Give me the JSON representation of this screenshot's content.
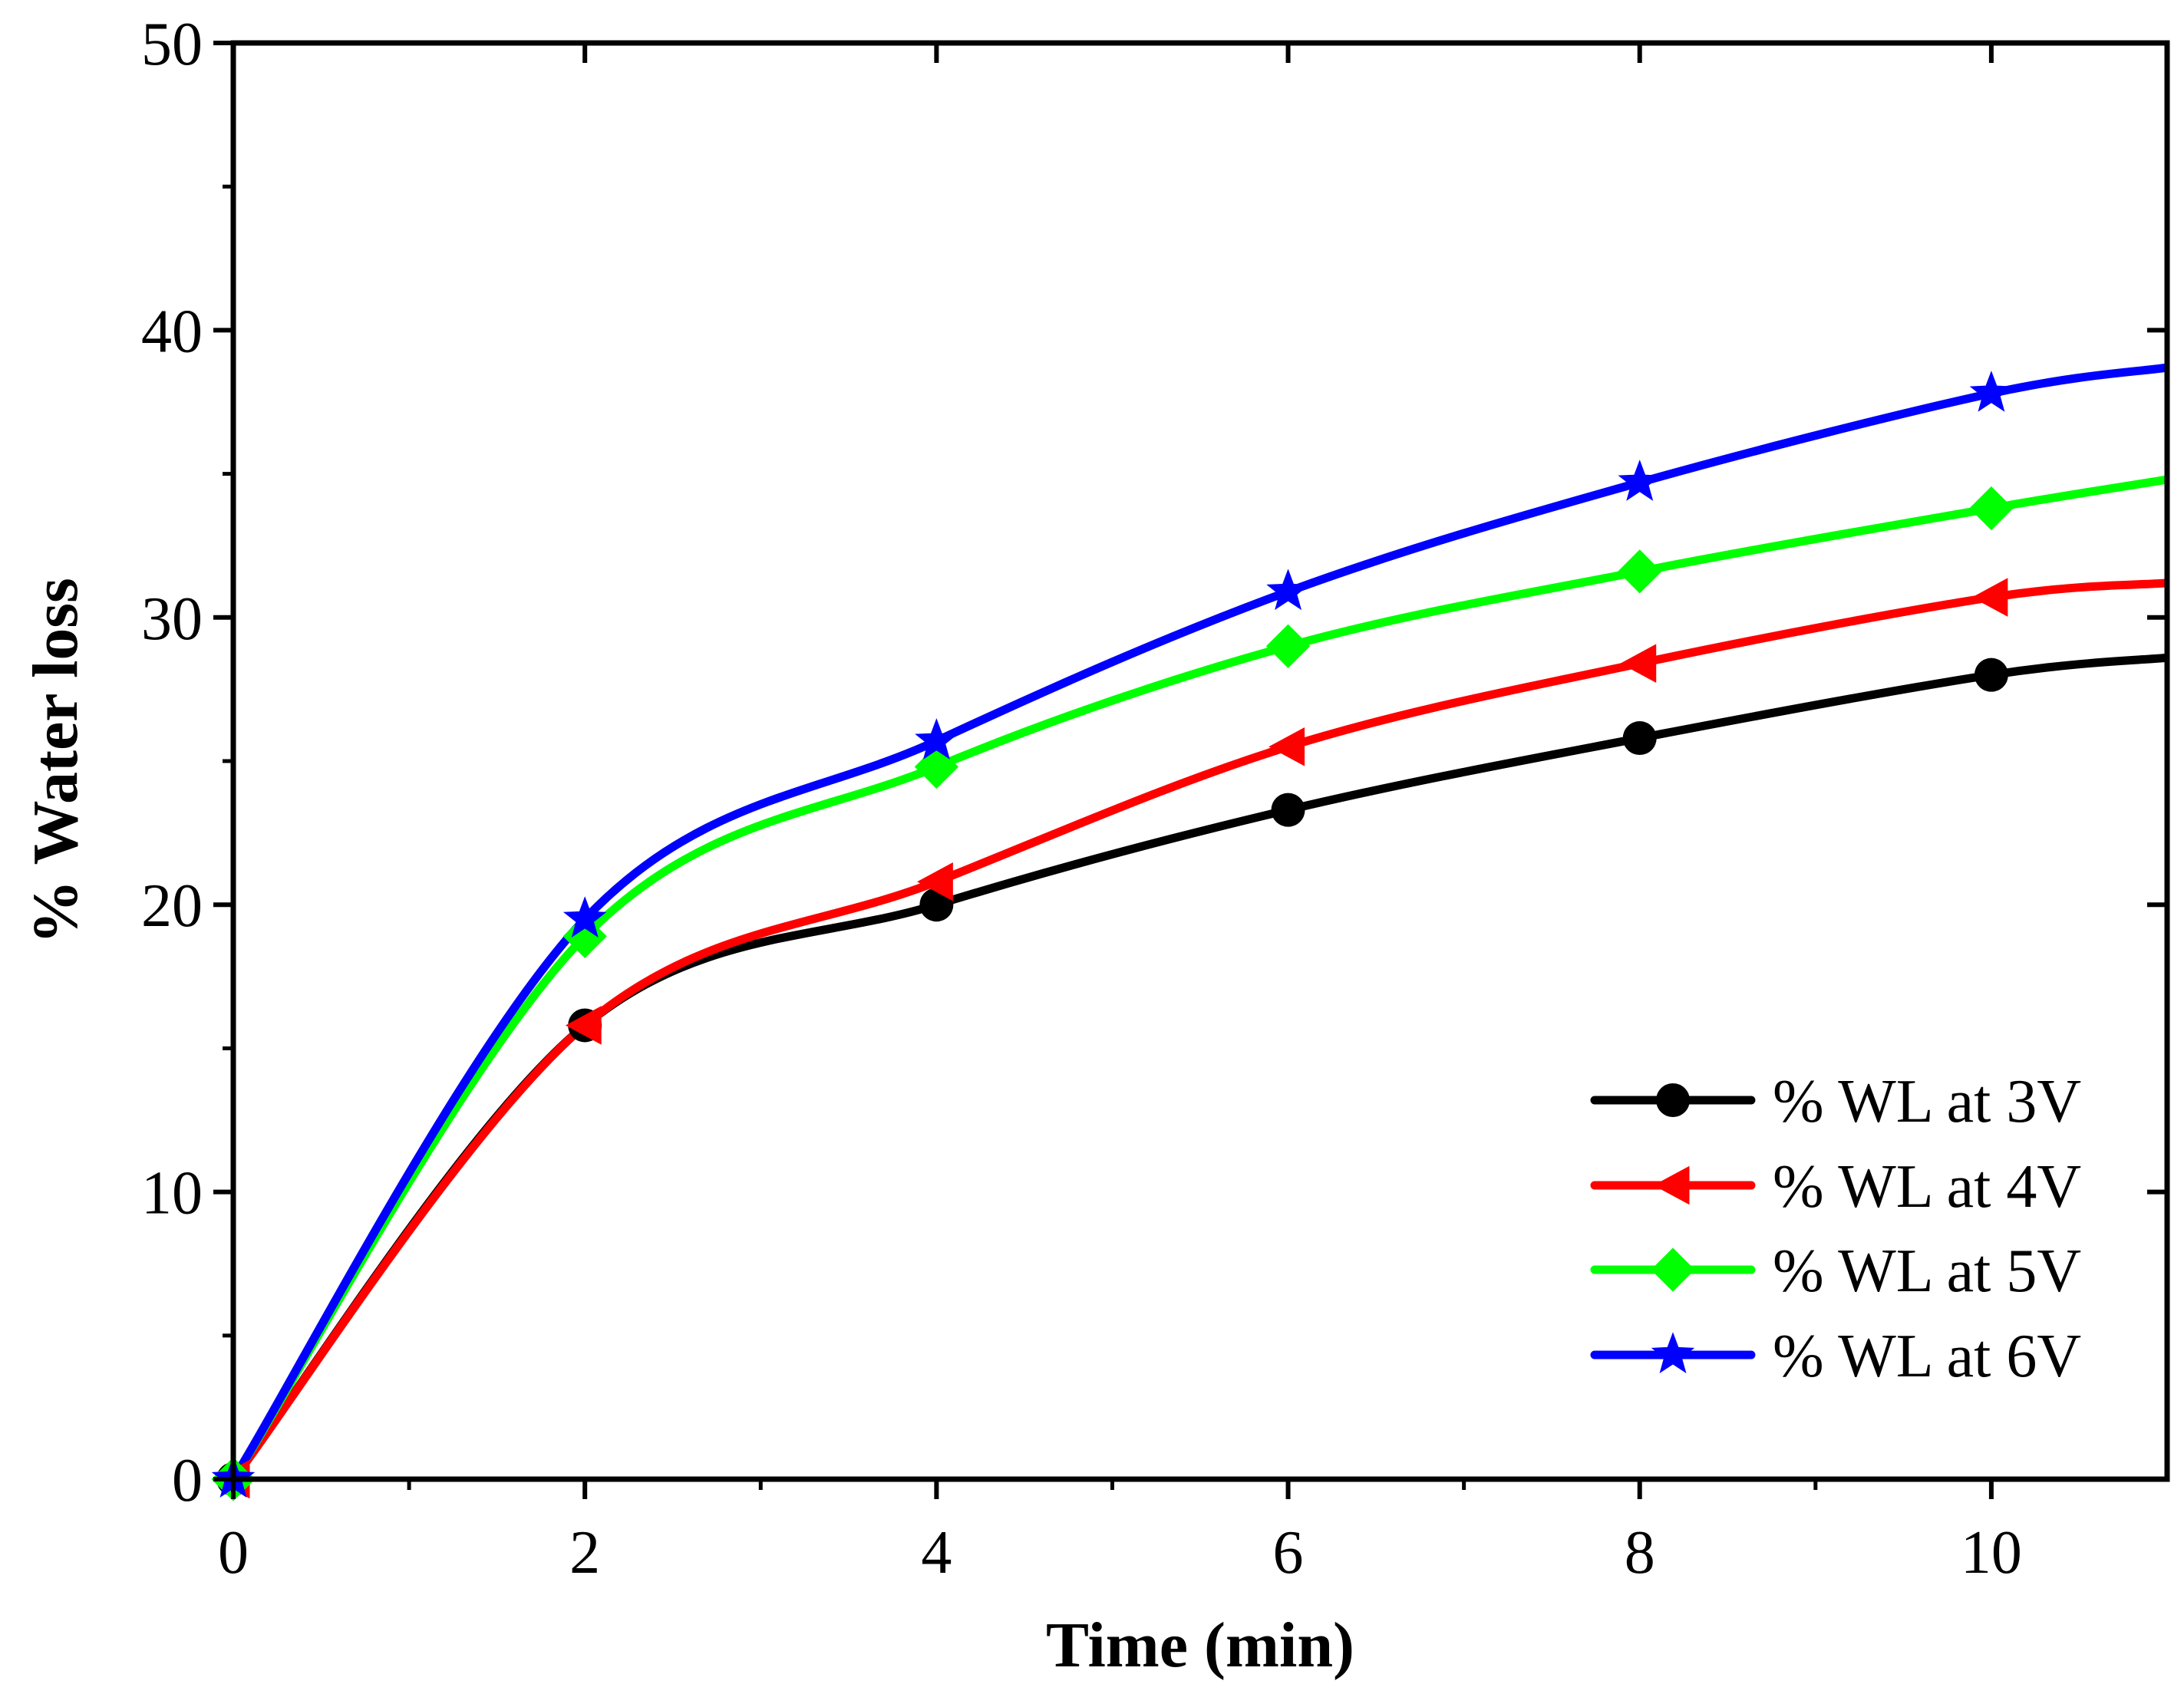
{
  "chart_data": {
    "type": "line",
    "title": "",
    "xlabel": "Time (min)",
    "ylabel": "% Water loss",
    "xlim": [
      0,
      11
    ],
    "ylim": [
      0,
      50
    ],
    "xticks": [
      0,
      2,
      4,
      6,
      8,
      10
    ],
    "yticks": [
      0,
      10,
      20,
      30,
      40,
      50
    ],
    "grid": false,
    "legend_position": "bottom-right",
    "series": [
      {
        "name": "% WL at 3V",
        "color": "#000000",
        "marker": "circle",
        "x": [
          0,
          2,
          4,
          6,
          8,
          10
        ],
        "y": [
          0,
          15.8,
          20.0,
          23.3,
          25.8,
          28.0
        ],
        "curve_end": 28.6
      },
      {
        "name": "% WL at 4V",
        "color": "#ff0000",
        "marker": "triangle-left",
        "x": [
          0,
          2,
          4,
          6,
          8,
          10
        ],
        "y": [
          0,
          15.8,
          20.8,
          25.5,
          28.4,
          30.7
        ],
        "curve_end": 31.2
      },
      {
        "name": "% WL at 5V",
        "color": "#00ff00",
        "marker": "diamond",
        "x": [
          0,
          2,
          4,
          6,
          8,
          10
        ],
        "y": [
          0,
          18.9,
          24.8,
          29.0,
          31.6,
          33.8
        ],
        "curve_end": 34.8
      },
      {
        "name": "% WL at 6V",
        "color": "#0000ff",
        "marker": "star",
        "x": [
          0,
          2,
          4,
          6,
          8,
          10
        ],
        "y": [
          0,
          19.5,
          25.7,
          30.9,
          34.7,
          37.8
        ],
        "curve_end": 38.7
      }
    ]
  }
}
